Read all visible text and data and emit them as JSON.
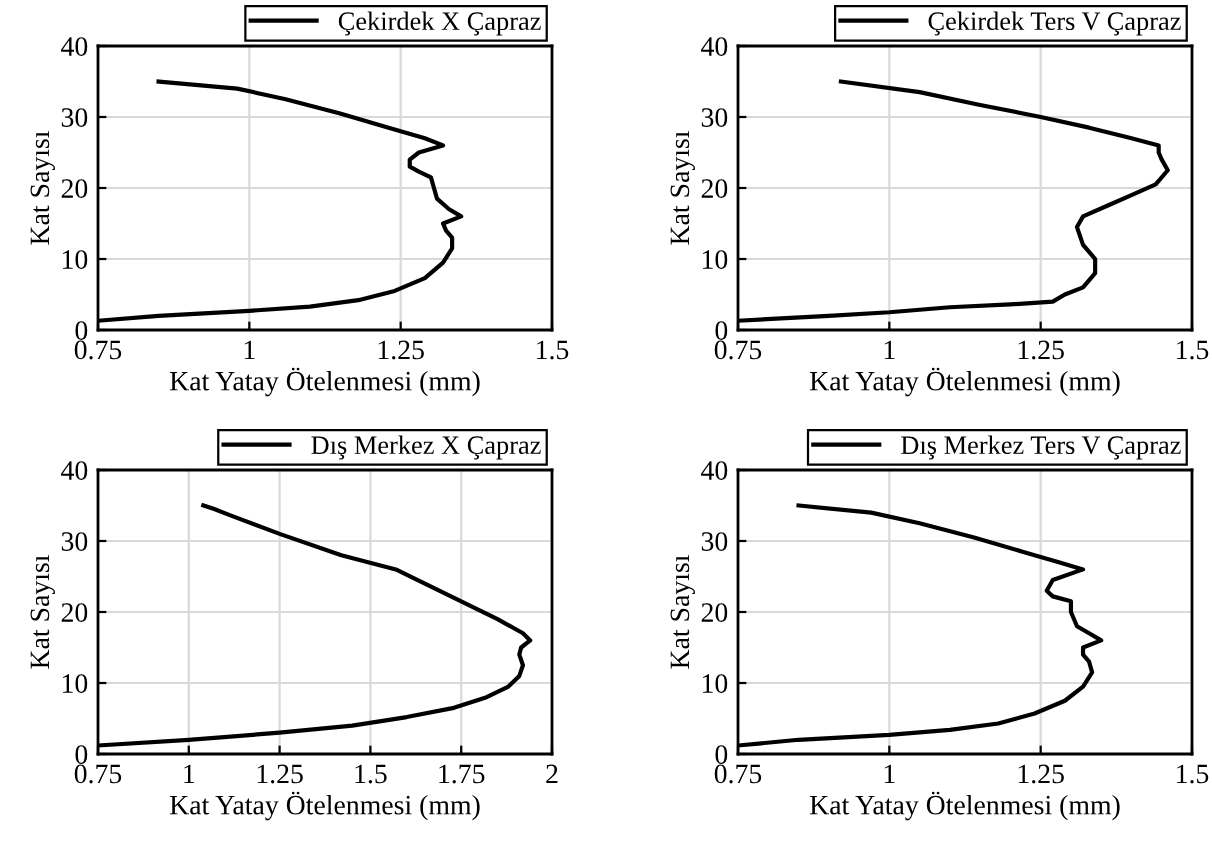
{
  "chart_data": [
    {
      "type": "line",
      "xlabel": "Kat Yatay Ötelenmesi (mm)",
      "ylabel": "Kat Sayısı",
      "xlim": [
        0.75,
        1.5
      ],
      "xticks": [
        0.75,
        1,
        1.25,
        1.5
      ],
      "ylim": [
        0,
        40
      ],
      "yticks": [
        0,
        10,
        20,
        30,
        40
      ],
      "grid": true,
      "legend": "top right",
      "marker": "none",
      "line_style": "solid",
      "series": [
        {
          "name": "Çekirdek X Çapraz",
          "color": "#000000",
          "x": [
            0.75,
            0.85,
            1.0,
            1.1,
            1.18,
            1.24,
            1.29,
            1.32,
            1.335,
            1.335,
            1.325,
            1.32,
            1.35,
            1.33,
            1.31,
            1.305,
            1.3,
            1.28,
            1.265,
            1.265,
            1.28,
            1.32,
            1.29,
            1.23,
            1.15,
            1.06,
            0.98,
            0.85
          ],
          "values": [
            1.3,
            2.0,
            2.7,
            3.3,
            4.2,
            5.5,
            7.3,
            9.5,
            11.5,
            13,
            14,
            15,
            16,
            17,
            18.5,
            20,
            21.5,
            22.3,
            23,
            24,
            25,
            26,
            27,
            28.5,
            30.5,
            32.5,
            34,
            35
          ]
        }
      ]
    },
    {
      "type": "line",
      "xlabel": "Kat Yatay Ötelenmesi (mm)",
      "ylabel": "Kat Sayısı",
      "xlim": [
        0.75,
        1.5
      ],
      "xticks": [
        0.75,
        1,
        1.25,
        1.5
      ],
      "ylim": [
        0,
        40
      ],
      "yticks": [
        0,
        10,
        20,
        30,
        40
      ],
      "grid": true,
      "legend": "top right",
      "marker": "none",
      "line_style": "solid",
      "series": [
        {
          "name": "Çekirdek Ters V Çapraz",
          "color": "#000000",
          "x": [
            0.75,
            0.9,
            1.0,
            1.1,
            1.2,
            1.27,
            1.29,
            1.32,
            1.34,
            1.34,
            1.32,
            1.31,
            1.32,
            1.36,
            1.4,
            1.44,
            1.46,
            1.45,
            1.445,
            1.445,
            1.4,
            1.33,
            1.25,
            1.15,
            1.05,
            0.92
          ],
          "values": [
            1.3,
            2,
            2.5,
            3.2,
            3.6,
            4,
            5,
            6,
            8,
            10,
            12,
            14.5,
            16,
            17.5,
            19,
            20.5,
            22.5,
            24,
            25,
            26,
            27,
            28.5,
            30,
            31.7,
            33.5,
            35
          ]
        }
      ]
    },
    {
      "type": "line",
      "xlabel": "Kat Yatay Ötelenmesi (mm)",
      "ylabel": "Kat Sayısı",
      "xlim": [
        0.75,
        2
      ],
      "xticks": [
        0.75,
        1,
        1.25,
        1.5,
        1.75,
        2
      ],
      "ylim": [
        0,
        40
      ],
      "yticks": [
        0,
        10,
        20,
        30,
        40
      ],
      "grid": true,
      "legend": "top right",
      "marker": "none",
      "line_style": "solid",
      "series": [
        {
          "name": "Dış Merkez X Çapraz",
          "color": "#000000",
          "x": [
            0.75,
            1.0,
            1.25,
            1.45,
            1.6,
            1.73,
            1.82,
            1.88,
            1.91,
            1.92,
            1.91,
            1.915,
            1.94,
            1.92,
            1.85,
            1.75,
            1.65,
            1.57,
            1.42,
            1.25,
            1.12,
            1.07,
            1.04
          ],
          "values": [
            1.2,
            2,
            3,
            4,
            5.2,
            6.5,
            8,
            9.5,
            11,
            12.5,
            14,
            15,
            16,
            17,
            19,
            21.5,
            24,
            26,
            28,
            31,
            33.5,
            34.5,
            35
          ]
        }
      ]
    },
    {
      "type": "line",
      "xlabel": "Kat Yatay Ötelenmesi (mm)",
      "ylabel": "Kat Sayısı",
      "xlim": [
        0.75,
        1.5
      ],
      "xticks": [
        0.75,
        1,
        1.25,
        1.5
      ],
      "ylim": [
        0,
        40
      ],
      "yticks": [
        0,
        10,
        20,
        30,
        40
      ],
      "grid": true,
      "legend": "top right",
      "marker": "none",
      "line_style": "solid",
      "series": [
        {
          "name": "Dış Merkez Ters V Çapraz",
          "color": "#000000",
          "x": [
            0.75,
            0.85,
            1.0,
            1.1,
            1.18,
            1.24,
            1.29,
            1.32,
            1.335,
            1.33,
            1.32,
            1.32,
            1.35,
            1.33,
            1.31,
            1.3,
            1.3,
            1.27,
            1.26,
            1.27,
            1.32,
            1.28,
            1.22,
            1.14,
            1.05,
            0.97,
            0.85
          ],
          "values": [
            1.2,
            2,
            2.7,
            3.4,
            4.3,
            5.7,
            7.5,
            9.5,
            11.5,
            13,
            14,
            15,
            16,
            17,
            18,
            20,
            21.5,
            22.2,
            23,
            24.5,
            26,
            27,
            28.5,
            30.5,
            32.5,
            34,
            35
          ]
        }
      ]
    }
  ]
}
